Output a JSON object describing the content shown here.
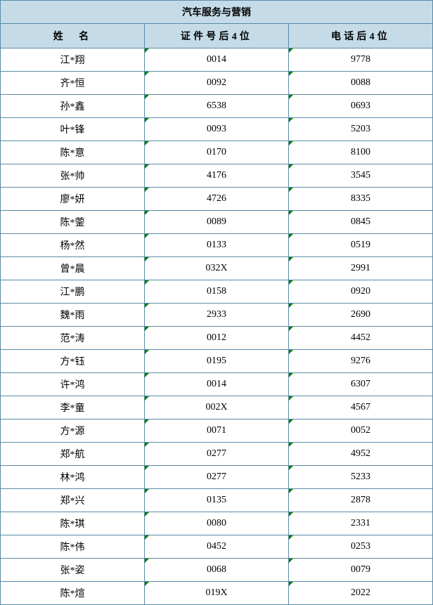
{
  "title": "汽车服务与营销",
  "columns": [
    "姓　名",
    "证件号后4位",
    "电话后4位"
  ],
  "header_bg": "#c5dce8",
  "border_color": "#5a8aa8",
  "rows": [
    {
      "name": "江*翔",
      "id": "0014",
      "phone": "9778"
    },
    {
      "name": "齐*恒",
      "id": "0092",
      "phone": "0088"
    },
    {
      "name": "孙*鑫",
      "id": "6538",
      "phone": "0693"
    },
    {
      "name": "叶*锋",
      "id": "0093",
      "phone": "5203"
    },
    {
      "name": "陈*意",
      "id": "0170",
      "phone": "8100"
    },
    {
      "name": "张*帅",
      "id": "4176",
      "phone": "3545"
    },
    {
      "name": "廖*妍",
      "id": "4726",
      "phone": "8335"
    },
    {
      "name": "陈*蓥",
      "id": "0089",
      "phone": "0845"
    },
    {
      "name": "杨*然",
      "id": "0133",
      "phone": "0519"
    },
    {
      "name": "曾*晨",
      "id": "032X",
      "phone": "2991"
    },
    {
      "name": "江*鹏",
      "id": "0158",
      "phone": "0920"
    },
    {
      "name": "魏*雨",
      "id": "2933",
      "phone": "2690"
    },
    {
      "name": "范*涛",
      "id": "0012",
      "phone": "4452"
    },
    {
      "name": "方*钰",
      "id": "0195",
      "phone": "9276"
    },
    {
      "name": "许*鸿",
      "id": "0014",
      "phone": "6307"
    },
    {
      "name": "李*童",
      "id": "002X",
      "phone": "4567"
    },
    {
      "name": "方*源",
      "id": "0071",
      "phone": "0052"
    },
    {
      "name": "郑*航",
      "id": "0277",
      "phone": "4952"
    },
    {
      "name": "林*鸿",
      "id": "0277",
      "phone": "5233"
    },
    {
      "name": "郑*兴",
      "id": "0135",
      "phone": "2878"
    },
    {
      "name": "陈*琪",
      "id": "0080",
      "phone": "2331"
    },
    {
      "name": "陈*伟",
      "id": "0452",
      "phone": "0253"
    },
    {
      "name": "张*姿",
      "id": "0068",
      "phone": "0079"
    },
    {
      "name": "陈*煊",
      "id": "019X",
      "phone": "2022"
    }
  ]
}
